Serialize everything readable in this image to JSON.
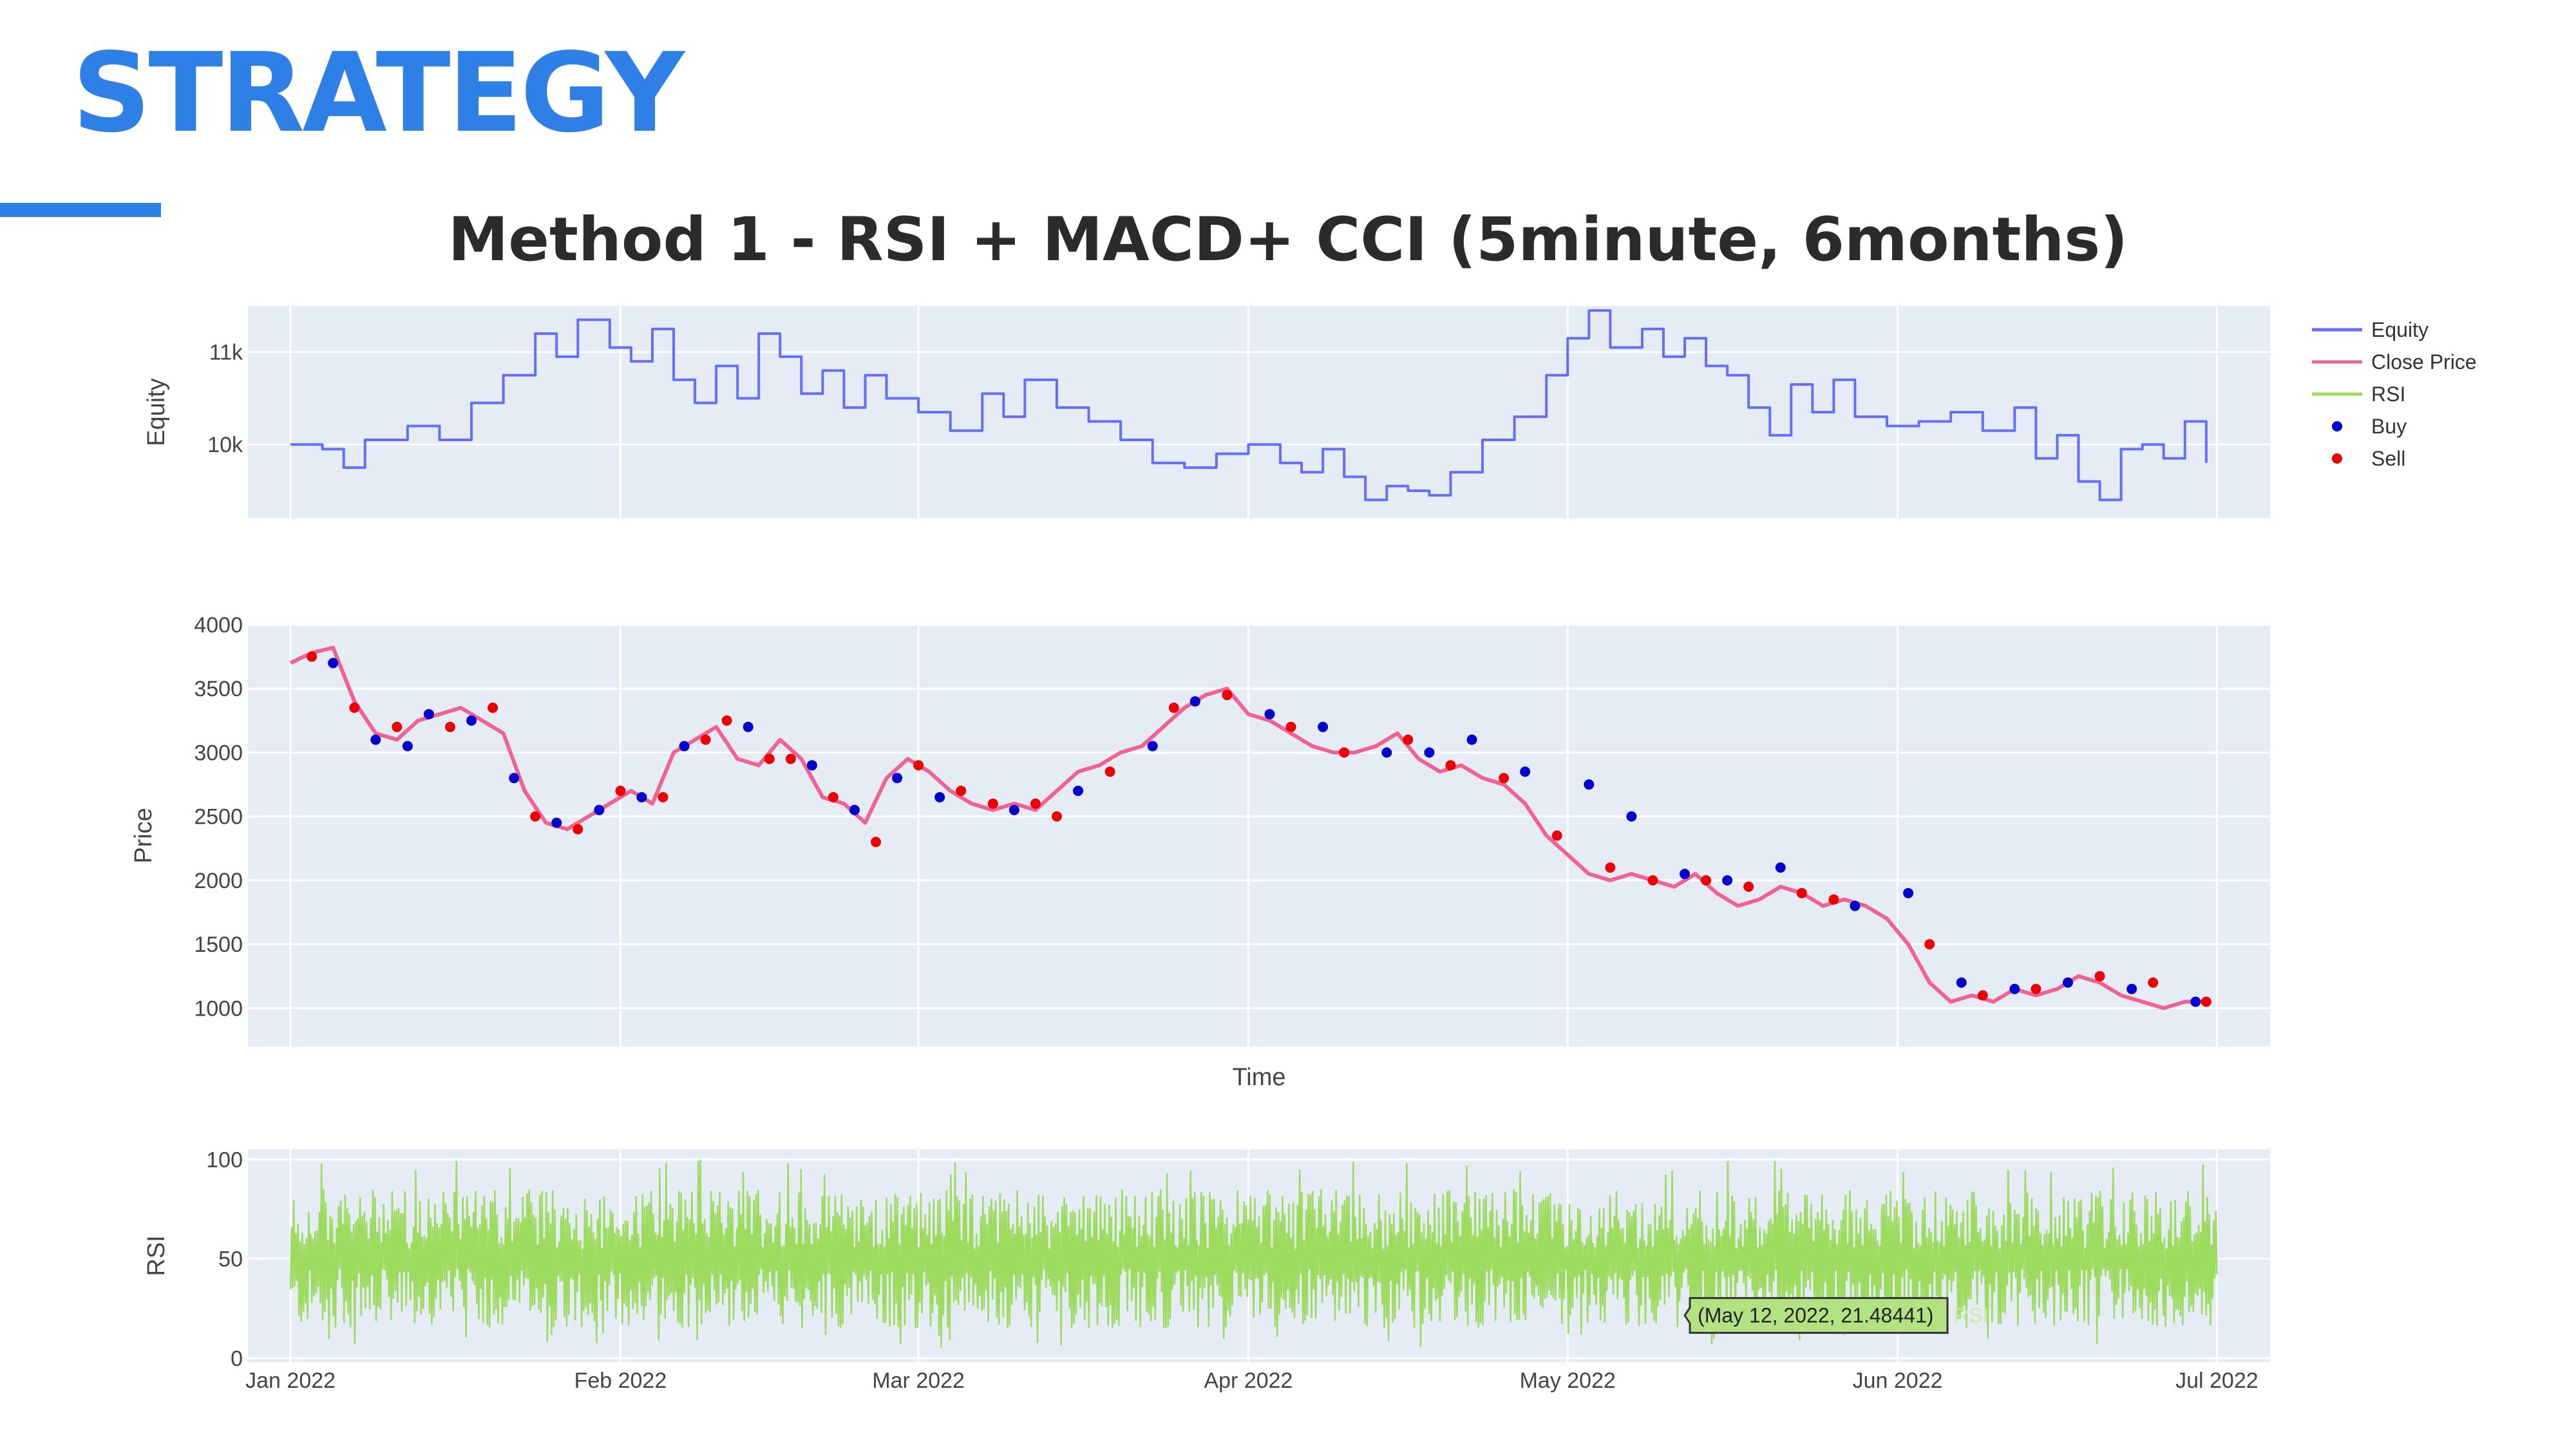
{
  "slide": {
    "title": "STRATEGY",
    "accent_color": "#2f80e6"
  },
  "chart_data": {
    "type": "line",
    "title": "Method 1 -  RSI + MACD+ CCI (5minute, 6months)",
    "xlabel": "Time",
    "x_ticks": [
      "Jan 2022",
      "Feb 2022",
      "Mar 2022",
      "Apr 2022",
      "May 2022",
      "Jun 2022",
      "Jul 2022"
    ],
    "xlim": [
      "2021-12-28",
      "2022-07-06"
    ],
    "grid": true,
    "legend_position": "top-right",
    "legend": [
      {
        "name": "Equity",
        "color": "#636efa",
        "symbol": "line"
      },
      {
        "name": "Close Price",
        "color": "#f06292",
        "symbol": "line"
      },
      {
        "name": "RSI",
        "color": "#9cdb5e",
        "symbol": "line"
      },
      {
        "name": "Buy",
        "color": "#0000cc",
        "symbol": "dot"
      },
      {
        "name": "Sell",
        "color": "#ee0000",
        "symbol": "dot"
      }
    ],
    "panels": [
      {
        "name": "Equity",
        "ylabel": "Equity",
        "ylim": [
          9200,
          11500
        ],
        "y_ticks": [
          {
            "value": 10000,
            "label": "10k"
          },
          {
            "value": 11000,
            "label": "11k"
          }
        ],
        "series": [
          {
            "name": "Equity",
            "color": "#636efa",
            "x": [
              "2022-01-01",
              "2022-01-04",
              "2022-01-06",
              "2022-01-08",
              "2022-01-12",
              "2022-01-15",
              "2022-01-18",
              "2022-01-21",
              "2022-01-24",
              "2022-01-26",
              "2022-01-28",
              "2022-01-31",
              "2022-02-02",
              "2022-02-04",
              "2022-02-06",
              "2022-02-08",
              "2022-02-10",
              "2022-02-12",
              "2022-02-14",
              "2022-02-16",
              "2022-02-18",
              "2022-02-20",
              "2022-02-22",
              "2022-02-24",
              "2022-02-26",
              "2022-03-01",
              "2022-03-04",
              "2022-03-07",
              "2022-03-09",
              "2022-03-11",
              "2022-03-14",
              "2022-03-17",
              "2022-03-20",
              "2022-03-23",
              "2022-03-26",
              "2022-03-29",
              "2022-04-01",
              "2022-04-04",
              "2022-04-06",
              "2022-04-08",
              "2022-04-10",
              "2022-04-12",
              "2022-04-14",
              "2022-04-16",
              "2022-04-18",
              "2022-04-20",
              "2022-04-23",
              "2022-04-26",
              "2022-04-29",
              "2022-05-01",
              "2022-05-03",
              "2022-05-05",
              "2022-05-08",
              "2022-05-10",
              "2022-05-12",
              "2022-05-14",
              "2022-05-16",
              "2022-05-18",
              "2022-05-20",
              "2022-05-22",
              "2022-05-24",
              "2022-05-26",
              "2022-05-28",
              "2022-05-31",
              "2022-06-03",
              "2022-06-06",
              "2022-06-09",
              "2022-06-12",
              "2022-06-14",
              "2022-06-16",
              "2022-06-18",
              "2022-06-20",
              "2022-06-22",
              "2022-06-24",
              "2022-06-26",
              "2022-06-28",
              "2022-06-30"
            ],
            "y": [
              10000,
              9950,
              9750,
              10050,
              10200,
              10050,
              10450,
              10750,
              11200,
              10950,
              11350,
              11050,
              10900,
              11250,
              10700,
              10450,
              10850,
              10500,
              11200,
              10950,
              10550,
              10800,
              10400,
              10750,
              10500,
              10350,
              10150,
              10550,
              10300,
              10700,
              10400,
              10250,
              10050,
              9800,
              9750,
              9900,
              10000,
              9800,
              9700,
              9950,
              9650,
              9400,
              9550,
              9500,
              9450,
              9700,
              10050,
              10300,
              10750,
              11150,
              11450,
              11050,
              11250,
              10950,
              11150,
              10850,
              10750,
              10400,
              10100,
              10650,
              10350,
              10700,
              10300,
              10200,
              10250,
              10350,
              10150,
              10400,
              9850,
              10100,
              9600,
              9400,
              9950,
              10000,
              9850,
              10250,
              9800
            ]
          }
        ]
      },
      {
        "name": "Price",
        "ylabel": "Price",
        "ylim": [
          700,
          4000
        ],
        "y_ticks": [
          {
            "value": 1000,
            "label": "1000"
          },
          {
            "value": 1500,
            "label": "1500"
          },
          {
            "value": 2000,
            "label": "2000"
          },
          {
            "value": 2500,
            "label": "2500"
          },
          {
            "value": 3000,
            "label": "3000"
          },
          {
            "value": 3500,
            "label": "3500"
          },
          {
            "value": 4000,
            "label": "4000"
          }
        ],
        "series": [
          {
            "name": "Close Price",
            "color": "#f06292",
            "x": [
              "2022-01-01",
              "2022-01-03",
              "2022-01-05",
              "2022-01-07",
              "2022-01-09",
              "2022-01-11",
              "2022-01-13",
              "2022-01-15",
              "2022-01-17",
              "2022-01-19",
              "2022-01-21",
              "2022-01-23",
              "2022-01-25",
              "2022-01-27",
              "2022-01-29",
              "2022-01-31",
              "2022-02-02",
              "2022-02-04",
              "2022-02-06",
              "2022-02-08",
              "2022-02-10",
              "2022-02-12",
              "2022-02-14",
              "2022-02-16",
              "2022-02-18",
              "2022-02-20",
              "2022-02-22",
              "2022-02-24",
              "2022-02-26",
              "2022-02-28",
              "2022-03-02",
              "2022-03-04",
              "2022-03-06",
              "2022-03-08",
              "2022-03-10",
              "2022-03-12",
              "2022-03-14",
              "2022-03-16",
              "2022-03-18",
              "2022-03-20",
              "2022-03-22",
              "2022-03-24",
              "2022-03-26",
              "2022-03-28",
              "2022-03-30",
              "2022-04-01",
              "2022-04-03",
              "2022-04-05",
              "2022-04-07",
              "2022-04-09",
              "2022-04-11",
              "2022-04-13",
              "2022-04-15",
              "2022-04-17",
              "2022-04-19",
              "2022-04-21",
              "2022-04-23",
              "2022-04-25",
              "2022-04-27",
              "2022-04-29",
              "2022-05-01",
              "2022-05-03",
              "2022-05-05",
              "2022-05-07",
              "2022-05-09",
              "2022-05-11",
              "2022-05-13",
              "2022-05-15",
              "2022-05-17",
              "2022-05-19",
              "2022-05-21",
              "2022-05-23",
              "2022-05-25",
              "2022-05-27",
              "2022-05-29",
              "2022-05-31",
              "2022-06-02",
              "2022-06-04",
              "2022-06-06",
              "2022-06-08",
              "2022-06-10",
              "2022-06-12",
              "2022-06-14",
              "2022-06-16",
              "2022-06-18",
              "2022-06-20",
              "2022-06-22",
              "2022-06-24",
              "2022-06-26",
              "2022-06-28",
              "2022-06-30"
            ],
            "y": [
              3700,
              3780,
              3820,
              3400,
              3150,
              3100,
              3250,
              3300,
              3350,
              3250,
              3150,
              2700,
              2450,
              2400,
              2500,
              2600,
              2700,
              2600,
              3000,
              3100,
              3200,
              2950,
              2900,
              3100,
              2950,
              2650,
              2600,
              2450,
              2800,
              2950,
              2850,
              2700,
              2600,
              2550,
              2600,
              2550,
              2700,
              2850,
              2900,
              3000,
              3050,
              3200,
              3350,
              3450,
              3500,
              3300,
              3250,
              3150,
              3050,
              3000,
              3000,
              3050,
              3150,
              2950,
              2850,
              2900,
              2800,
              2750,
              2600,
              2350,
              2200,
              2050,
              2000,
              2050,
              2000,
              1950,
              2050,
              1900,
              1800,
              1850,
              1950,
              1900,
              1800,
              1850,
              1800,
              1700,
              1500,
              1200,
              1050,
              1100,
              1050,
              1150,
              1100,
              1150,
              1250,
              1200,
              1100,
              1050,
              1000,
              1050,
              1050
            ]
          },
          {
            "name": "Buy",
            "color": "#0000cc",
            "x": [
              "2022-01-05",
              "2022-01-09",
              "2022-01-12",
              "2022-01-14",
              "2022-01-18",
              "2022-01-22",
              "2022-01-26",
              "2022-01-30",
              "2022-02-03",
              "2022-02-07",
              "2022-02-13",
              "2022-02-19",
              "2022-02-23",
              "2022-02-27",
              "2022-03-03",
              "2022-03-10",
              "2022-03-16",
              "2022-03-23",
              "2022-03-27",
              "2022-04-03",
              "2022-04-08",
              "2022-04-14",
              "2022-04-18",
              "2022-04-22",
              "2022-04-27",
              "2022-05-03",
              "2022-05-07",
              "2022-05-12",
              "2022-05-16",
              "2022-05-21",
              "2022-05-28",
              "2022-06-02",
              "2022-06-07",
              "2022-06-12",
              "2022-06-17",
              "2022-06-23",
              "2022-06-29"
            ],
            "y": [
              3700,
              3100,
              3050,
              3300,
              3250,
              2800,
              2450,
              2550,
              2650,
              3050,
              3200,
              2900,
              2550,
              2800,
              2650,
              2550,
              2700,
              3050,
              3400,
              3300,
              3200,
              3000,
              3000,
              3100,
              2850,
              2750,
              2500,
              2050,
              2000,
              2100,
              1800,
              1900,
              1200,
              1150,
              1200,
              1150,
              1050
            ]
          },
          {
            "name": "Sell",
            "color": "#ee0000",
            "x": [
              "2022-01-03",
              "2022-01-07",
              "2022-01-11",
              "2022-01-16",
              "2022-01-20",
              "2022-01-24",
              "2022-01-28",
              "2022-02-01",
              "2022-02-05",
              "2022-02-09",
              "2022-02-11",
              "2022-02-15",
              "2022-02-17",
              "2022-02-21",
              "2022-02-25",
              "2022-03-01",
              "2022-03-05",
              "2022-03-08",
              "2022-03-12",
              "2022-03-14",
              "2022-03-19",
              "2022-03-25",
              "2022-03-30",
              "2022-04-05",
              "2022-04-10",
              "2022-04-16",
              "2022-04-20",
              "2022-04-25",
              "2022-04-30",
              "2022-05-05",
              "2022-05-09",
              "2022-05-14",
              "2022-05-18",
              "2022-05-23",
              "2022-05-26",
              "2022-06-04",
              "2022-06-09",
              "2022-06-14",
              "2022-06-20",
              "2022-06-25",
              "2022-06-30"
            ],
            "y": [
              3750,
              3350,
              3200,
              3200,
              3350,
              2500,
              2400,
              2700,
              2650,
              3100,
              3250,
              2950,
              2950,
              2650,
              2300,
              2900,
              2700,
              2600,
              2600,
              2500,
              2850,
              3350,
              3450,
              3200,
              3000,
              3100,
              2900,
              2800,
              2350,
              2100,
              2000,
              2000,
              1950,
              1900,
              1850,
              1500,
              1100,
              1150,
              1250,
              1200,
              1050
            ]
          }
        ]
      },
      {
        "name": "RSI",
        "ylabel": "RSI",
        "ylim": [
          -2,
          105
        ],
        "y_ticks": [
          {
            "value": 0,
            "label": "0"
          },
          {
            "value": 50,
            "label": "50"
          },
          {
            "value": 100,
            "label": "100"
          }
        ],
        "series": [
          {
            "name": "RSI",
            "color": "#9cdb5e",
            "x_range": [
              "2022-01-01",
              "2022-07-01"
            ],
            "y_range": [
              5,
              100
            ],
            "typical_range": [
              15,
              85
            ]
          }
        ],
        "hover_label": {
          "text": "(May 12, 2022, 21.48441)",
          "x": "2022-05-12",
          "y": 21.48441,
          "trace": "RSI"
        }
      }
    ]
  }
}
